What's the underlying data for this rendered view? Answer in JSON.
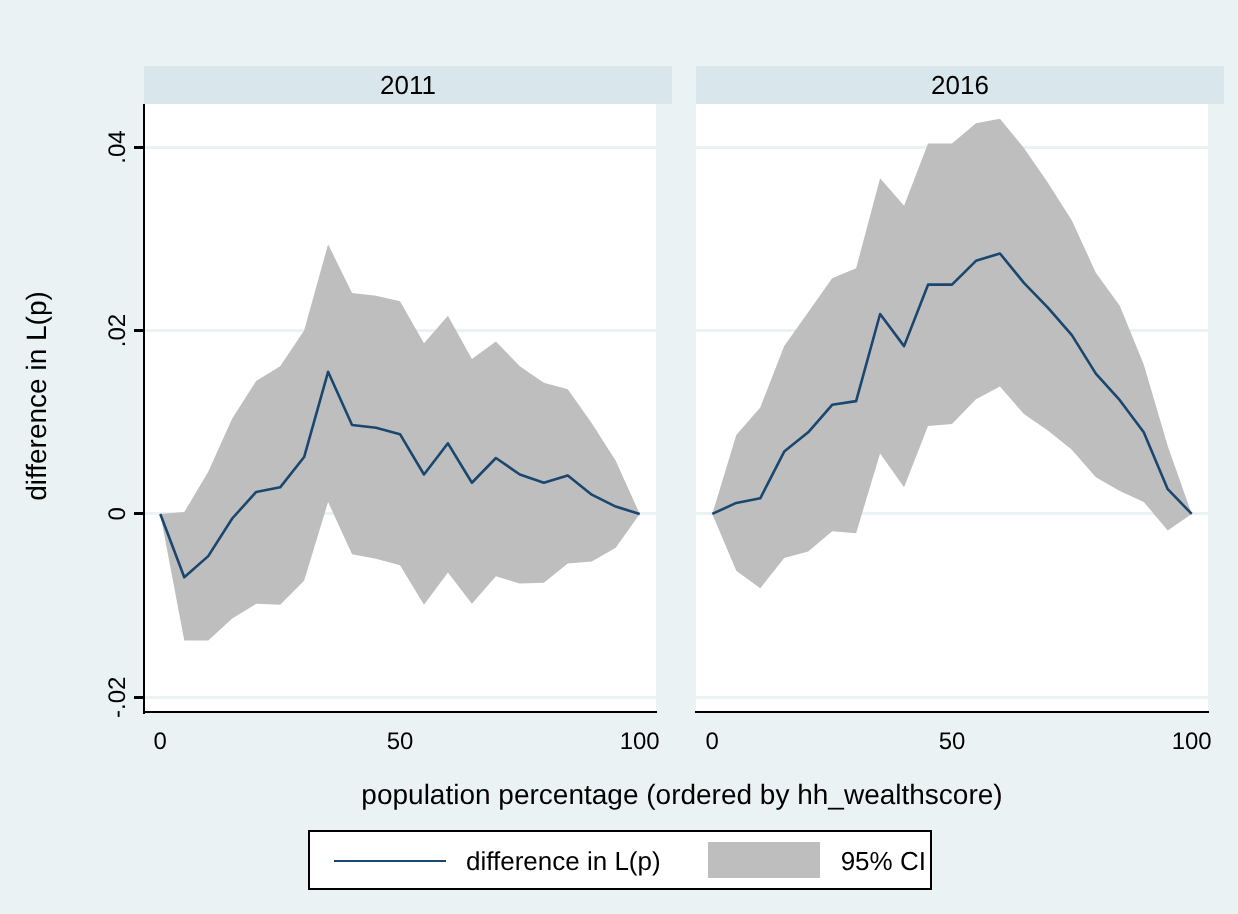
{
  "chart_data": [
    {
      "type": "line",
      "title": "2011",
      "xlabel": "population percentage (ordered by hh_wealthscore)",
      "ylabel": "difference in L(p)",
      "legend": "bottom",
      "grid": "y",
      "marker": "none",
      "annotations": [
        "95% CI"
      ],
      "x": [
        0,
        5,
        10,
        15,
        20,
        25,
        30,
        35,
        40,
        45,
        50,
        55,
        60,
        65,
        70,
        75,
        80,
        85,
        90,
        95,
        100
      ],
      "xlim": [
        -3.4,
        103.4
      ],
      "xticks": [
        0,
        50,
        100
      ],
      "ylim": [
        -0.0216,
        0.0447
      ],
      "yticks": [
        {
          "value": -0.02,
          "label": "-.02"
        },
        {
          "value": 0,
          "label": "0"
        },
        {
          "value": 0.02,
          "label": ".02"
        },
        {
          "value": 0.04,
          "label": ".04"
        }
      ],
      "series": [
        {
          "name": "difference in L(p)",
          "type": "line",
          "color": "#1a476f",
          "values": [
            0,
            -0.0069,
            -0.0046,
            -0.0005,
            0.0024,
            0.0029,
            0.0062,
            0.0155,
            0.0097,
            0.0094,
            0.0087,
            0.0043,
            0.0077,
            0.0034,
            0.0061,
            0.0043,
            0.0034,
            0.0042,
            0.0021,
            0.0008,
            0
          ],
          "lower": [
            0,
            -0.0138,
            -0.0138,
            -0.0114,
            -0.0098,
            -0.0099,
            -0.0073,
            0.0013,
            -0.0044,
            -0.0049,
            -0.0056,
            -0.0099,
            -0.0064,
            -0.0098,
            -0.0068,
            -0.0076,
            -0.0075,
            -0.0054,
            -0.0052,
            -0.0037,
            0
          ],
          "upper": [
            0,
            0.0002,
            0.0046,
            0.0104,
            0.0145,
            0.0161,
            0.02,
            0.0294,
            0.0241,
            0.0238,
            0.0232,
            0.0186,
            0.0216,
            0.0169,
            0.0188,
            0.0161,
            0.0143,
            0.0136,
            0.0099,
            0.0058,
            0
          ]
        }
      ]
    },
    {
      "type": "line",
      "title": "2016",
      "grid": "y",
      "marker": "none",
      "tick_labels": "x",
      "x": [
        0,
        5,
        10,
        15,
        20,
        25,
        30,
        35,
        40,
        45,
        50,
        55,
        60,
        65,
        70,
        75,
        80,
        85,
        90,
        95,
        100
      ],
      "xlim": [
        -3.4,
        103.4
      ],
      "xticks": [
        0,
        50,
        100
      ],
      "ylim": [
        -0.0216,
        0.0447
      ],
      "yticks": [
        -0.02,
        0,
        0.02,
        0.04
      ],
      "series": [
        {
          "type": "line",
          "color": "#1a476f",
          "values": [
            0,
            0.0012,
            0.0017,
            0.0068,
            0.0089,
            0.0119,
            0.0123,
            0.0218,
            0.0183,
            0.025,
            0.025,
            0.0276,
            0.0284,
            0.0252,
            0.0225,
            0.0195,
            0.0153,
            0.0124,
            0.0089,
            0.0027,
            0
          ],
          "lower": [
            0,
            -0.0062,
            -0.0081,
            -0.0048,
            -0.0041,
            -0.0019,
            -0.0021,
            0.0066,
            0.0029,
            0.0096,
            0.0098,
            0.0125,
            0.0139,
            0.0109,
            0.0091,
            0.007,
            0.004,
            0.0025,
            0.0013,
            -0.0018,
            0
          ],
          "upper": [
            0,
            0.0086,
            0.0116,
            0.0183,
            0.022,
            0.0257,
            0.0268,
            0.0366,
            0.0336,
            0.0404,
            0.0404,
            0.0426,
            0.0431,
            0.0399,
            0.0361,
            0.032,
            0.0263,
            0.0227,
            0.0163,
            0.0074,
            0
          ]
        }
      ]
    }
  ]
}
